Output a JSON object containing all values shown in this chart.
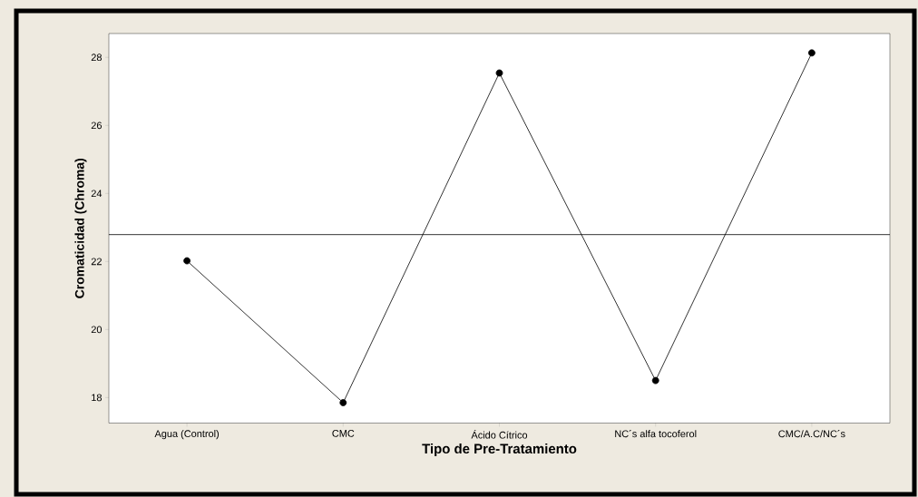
{
  "chart_data": {
    "type": "line",
    "xlabel": "Tipo de Pre-Tratamiento",
    "ylabel": "Cromaticidad (Chroma)",
    "categories": [
      "Agua (Control)",
      "CMC",
      "Ácido Cítrico",
      "NC´s alfa tocoferol",
      "CMC/A.C/NC´s"
    ],
    "values": [
      22.02,
      17.85,
      27.54,
      18.5,
      28.13
    ],
    "color": "#000000",
    "marker": "circle",
    "line_style": "solid",
    "ylim": [
      17.25,
      28.7
    ],
    "yticks": [
      18,
      20,
      22,
      24,
      26,
      28
    ],
    "grid": false,
    "ref_lines": [
      {
        "axis": "y",
        "value": 22.79,
        "color": "#000000"
      }
    ]
  }
}
